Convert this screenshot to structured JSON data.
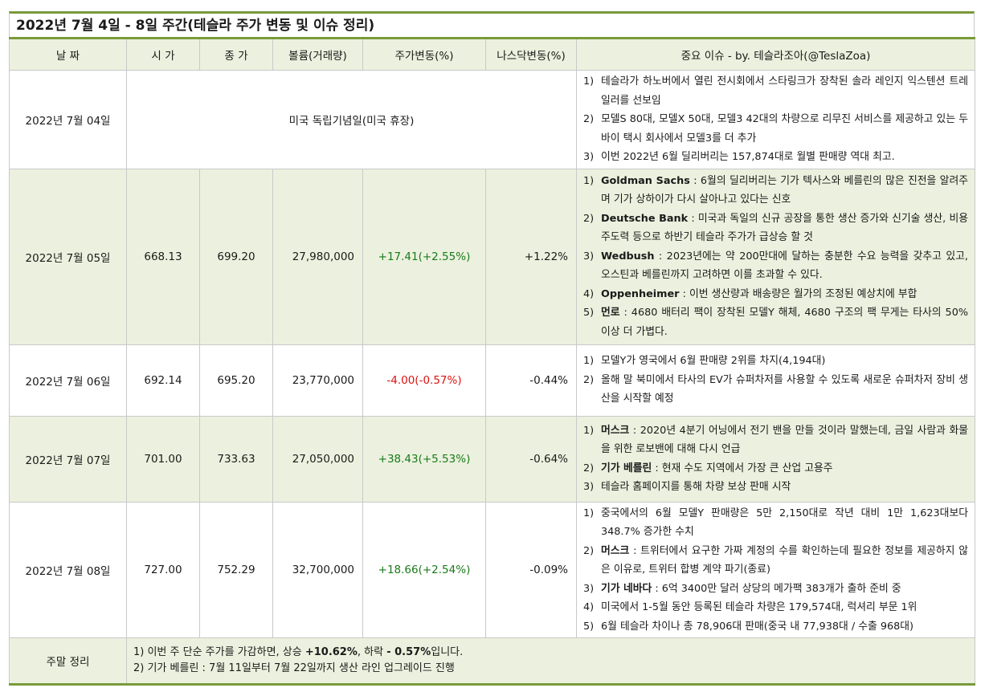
{
  "title": "2022년 7월 4일 - 8일 주간(테슬라 주가 변동 및 이슈 정리)",
  "headers": {
    "date": "날 짜",
    "open": "시 가",
    "close": "종 가",
    "volume": "볼륨(거래량)",
    "change": "주가변동(%)",
    "nasdaq": "나스닥변동(%)",
    "issues": "중요 이슈 - by. 테슬라조아(@TeslaZoa)"
  },
  "rows": [
    {
      "date": "2022년 7월 04일",
      "holiday": "미국 독립기념일(미국 휴장)",
      "issues": [
        {
          "n": "1)",
          "bold": "",
          "text": "테슬라가 하노버에서 열린 전시회에서 스타링크가 장착된 솔라 레인지 익스텐션 트레일러를 선보임"
        },
        {
          "n": "2)",
          "bold": "",
          "text": "모델S 80대, 모델X 50대, 모델3 42대의 차량으로 리무진 서비스를 제공하고 있는 두바이 택시 회사에서 모델3를 더 추가"
        },
        {
          "n": "3)",
          "bold": "",
          "text": "이번 2022년 6월 딜리버리는 157,874대로 월별 판매량 역대 최고."
        }
      ]
    },
    {
      "date": "2022년 7월 05일",
      "open": "668.13",
      "close": "699.20",
      "volume": "27,980,000",
      "change": "+17.41(+2.55%)",
      "nasdaq": "+1.22%",
      "issues": [
        {
          "n": "1)",
          "bold": "Goldman Sachs",
          "text": " : 6월의 딜리버리는 기가 텍사스와 베를린의 많은 진전을 알려주며 기가 상하이가 다시 살아나고 있다는 신호"
        },
        {
          "n": "2)",
          "bold": "Deutsche Bank",
          "text": " : 미국과 독일의 신규 공장을 통한 생산 증가와 신기술 생산, 비용 주도력 등으로 하반기 테슬라 주가가 급상승 할 것"
        },
        {
          "n": "3)",
          "bold": "Wedbush",
          "text": " : 2023년에는 약 200만대에 달하는 충분한 수요 능력을 갖추고 있고, 오스틴과 베를린까지 고려하면 이를 초과할 수 있다."
        },
        {
          "n": "4)",
          "bold": "Oppenheimer",
          "text": " : 이번 생산량과 배송량은 월가의 조정된 예상치에 부합"
        },
        {
          "n": "5)",
          "bold": "먼로",
          "text": " : 4680 배터리 팩이 장착된 모델Y 해체, 4680 구조의 팩 무게는 타사의 50% 이상 더 가볍다."
        }
      ]
    },
    {
      "date": "2022년 7월 06일",
      "open": "692.14",
      "close": "695.20",
      "volume": "23,770,000",
      "change": "-4.00(-0.57%)",
      "nasdaq": "-0.44%",
      "issues": [
        {
          "n": "1)",
          "bold": "",
          "text": "모델Y가 영국에서 6월 판매량 2위를 차지(4,194대)"
        },
        {
          "n": "2)",
          "bold": "",
          "text": "올해 말 북미에서 타사의 EV가 슈퍼차저를 사용할 수 있도록 새로운 슈퍼차저 장비 생산을 시작할 예정"
        }
      ]
    },
    {
      "date": "2022년 7월 07일",
      "open": "701.00",
      "close": "733.63",
      "volume": "27,050,000",
      "change": "+38.43(+5.53%)",
      "nasdaq": "-0.64%",
      "issues": [
        {
          "n": "1)",
          "bold": "머스크",
          "text": " : 2020년 4분기 어닝에서 전기 밴을 만들 것이라 말했는데, 금일 사람과 화물을 위한 로보밴에 대해 다시 언급"
        },
        {
          "n": "2)",
          "bold": "기가 베를린",
          "text": " : 현재 수도 지역에서 가장 큰 산업 고용주"
        },
        {
          "n": "3)",
          "bold": "",
          "text": "테슬라 홈페이지를 통해 차량 보상 판매 시작"
        }
      ]
    },
    {
      "date": "2022년 7월 08일",
      "open": "727.00",
      "close": "752.29",
      "volume": "32,700,000",
      "change": "+18.66(+2.54%)",
      "nasdaq": "-0.09%",
      "issues": [
        {
          "n": "1)",
          "bold": "",
          "text": "중국에서의 6월 모델Y 판매량은 5만 2,150대로 작년 대비 1만 1,623대보다 348.7% 증가한 수치"
        },
        {
          "n": "2)",
          "bold": "머스크",
          "text": " : 트위터에서 요구한 가짜 계정의 수를 확인하는데 필요한 정보를 제공하지 않은 이유로, 트위터 합병 계약 파기(종료)"
        },
        {
          "n": "3)",
          "bold": "기가 네바다",
          "text": " : 6억 3400만 달러 상당의 메가팩 383개가 출하 준비 중"
        },
        {
          "n": "4)",
          "bold": "",
          "text": "미국에서 1-5월 동안 등록된 테슬라 차량은 179,574대, 럭셔리 부문 1위"
        },
        {
          "n": "5)",
          "bold": "",
          "text": "6월 테슬라 차이나 총 78,906대 판매(중국 내 77,938대 / 수출 968대)"
        }
      ]
    }
  ],
  "summary": {
    "label": "주말 정리",
    "line1_pre": "1) 이번 주 단순 주가를 가감하면, 상승 ",
    "line1_up": "+10.62%",
    "line1_mid": ", 하락 ",
    "line1_down": "- 0.57%",
    "line1_post": "입니다.",
    "line2": "2) 기가 베를린 : 7월 11일부터 7월 22일까지 생산 라인 업그레이드 진행"
  }
}
